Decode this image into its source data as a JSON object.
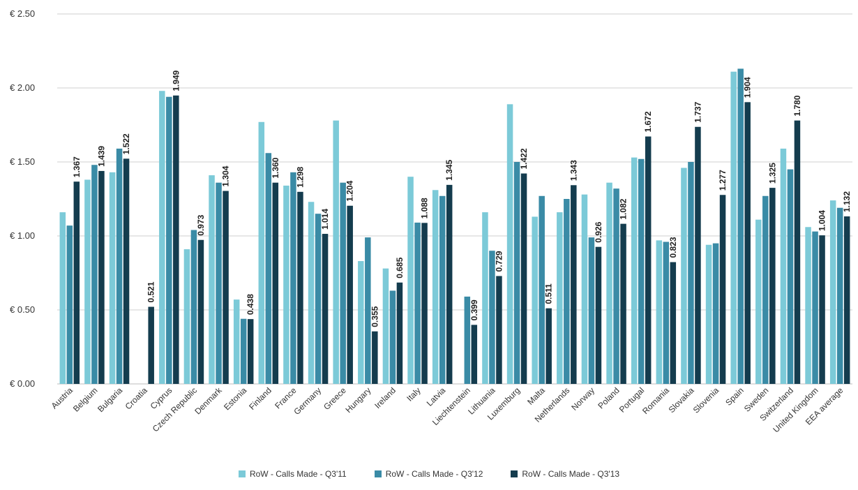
{
  "chart_data": {
    "type": "bar",
    "title": "",
    "xlabel": "",
    "ylabel": "",
    "ylim": [
      0,
      2.5
    ],
    "yticks": [
      0,
      0.5,
      1.0,
      1.5,
      2.0,
      2.5
    ],
    "ytick_labels": [
      "€ 0.00",
      "€ 0.50",
      "€ 1.00",
      "€ 1.50",
      "€ 2.00",
      "€ 2.50"
    ],
    "grid": true,
    "legend_position": "bottom",
    "categories": [
      "Austria",
      "Belgium",
      "Bulgaria",
      "Croatia",
      "Cyprus",
      "Czech Republic",
      "Denmark",
      "Estonia",
      "Finland",
      "France",
      "Germany",
      "Greece",
      "Hungary",
      "Ireland",
      "Italy",
      "Latvia",
      "Liechtenstein",
      "Lithuania",
      "Luxemburg",
      "Malta",
      "Netherlands",
      "Norway",
      "Poland",
      "Portugal",
      "Romania",
      "Slovakia",
      "Slovenia",
      "Spain",
      "Sweden",
      "Switzerland",
      "United Kingdom",
      "EEA average"
    ],
    "series": [
      {
        "name": "RoW - Calls Made - Q3'11",
        "color": "#7ccad8",
        "values": [
          1.16,
          1.38,
          1.43,
          null,
          1.98,
          0.91,
          1.41,
          0.57,
          1.77,
          1.34,
          1.23,
          1.78,
          0.83,
          0.78,
          1.4,
          1.31,
          null,
          1.16,
          1.89,
          1.13,
          1.16,
          1.28,
          1.36,
          1.53,
          0.97,
          1.46,
          0.94,
          2.11,
          1.11,
          1.59,
          1.06,
          1.24
        ]
      },
      {
        "name": "RoW - Calls Made - Q3'12",
        "color": "#3a8ba6",
        "values": [
          1.07,
          1.48,
          1.59,
          null,
          1.94,
          1.04,
          1.36,
          0.44,
          1.56,
          1.43,
          1.15,
          1.36,
          0.99,
          0.63,
          1.09,
          1.27,
          0.59,
          0.9,
          1.5,
          1.27,
          1.25,
          0.99,
          1.32,
          1.52,
          0.96,
          1.5,
          0.95,
          2.13,
          1.27,
          1.45,
          1.03,
          1.19
        ]
      },
      {
        "name": "RoW - Calls Made - Q3'13",
        "color": "#143c4e",
        "values": [
          1.367,
          1.439,
          1.522,
          0.521,
          1.949,
          0.973,
          1.304,
          0.438,
          1.36,
          1.298,
          1.014,
          1.204,
          0.355,
          0.685,
          1.088,
          1.345,
          0.399,
          0.729,
          1.422,
          0.511,
          1.343,
          0.926,
          1.082,
          1.672,
          0.823,
          1.737,
          1.277,
          1.904,
          1.325,
          1.78,
          1.004,
          1.132
        ]
      }
    ],
    "data_labels": [
      "1.367",
      "1.439",
      "1.522",
      "0.521",
      "1.949",
      "0.973",
      "1.304",
      "0.438",
      "1.360",
      "1.298",
      "1.014",
      "1.204",
      "0.355",
      "0.685",
      "1.088",
      "1.345",
      "0.399",
      "0.729",
      "1.422",
      "0.511",
      "1.343",
      "0.926",
      "1.082",
      "1.672",
      "0.823",
      "1.737",
      "1.277",
      "1.904",
      "1.325",
      "1.780",
      "1.004",
      "1.132"
    ]
  }
}
